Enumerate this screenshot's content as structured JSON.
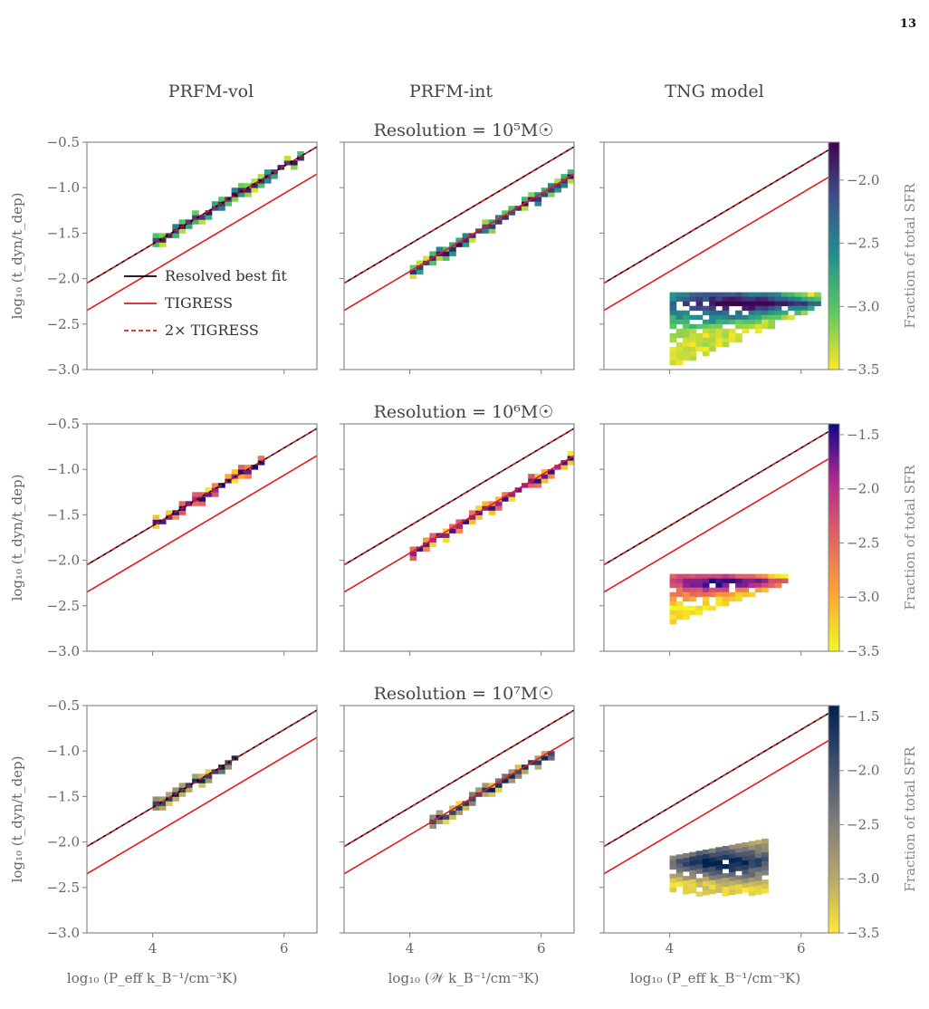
{
  "page_number": "13",
  "column_titles": [
    "PRFM-vol",
    "PRFM-int",
    "TNG model"
  ],
  "legend": {
    "entries": [
      {
        "label": "Resolved best fit",
        "color": "#000000",
        "style": "solid"
      },
      {
        "label": "TIGRESS",
        "color": "#e41a1c",
        "style": "solid"
      },
      {
        "label": "2× TIGRESS",
        "color": "#e41a1c",
        "style": "dashed"
      }
    ],
    "placement": "lower-right (top-left panel)"
  },
  "chart_data": {
    "type": "heatmap",
    "grid": [
      3,
      3
    ],
    "xlim": [
      3,
      6.5
    ],
    "ylim": [
      -3.0,
      -0.5
    ],
    "xticks": [
      "4",
      "6"
    ],
    "yticks": [
      "−0.5",
      "−1.0",
      "−1.5",
      "−2.0",
      "−2.5",
      "−3.0"
    ],
    "ylabel": "log₁₀ (t_dyn/t_dep)",
    "xlabels": [
      "log₁₀ (P_eff k_B⁻¹/cm⁻³K)",
      "log₁₀ (𝒲 k_B⁻¹/cm⁻³K)",
      "log₁₀ (P_eff k_B⁻¹/cm⁻³K)"
    ],
    "lines": {
      "resolved_best_fit": {
        "x": [
          3,
          6.5
        ],
        "y": [
          -2.05,
          -0.55
        ]
      },
      "tigress": {
        "x": [
          3,
          6.5
        ],
        "y": [
          -2.35,
          -0.85
        ]
      },
      "two_x_tigress": {
        "x": [
          3,
          6.5
        ],
        "y": [
          -2.05,
          -0.55
        ]
      }
    },
    "colorbar": {
      "label": "Fraction of total SFR",
      "ticks": [
        "−1.5",
        "−2.0",
        "−2.5",
        "−3.0",
        "−3.5"
      ],
      "ticks_top_row": [
        "−2.0",
        "−2.5",
        "−3.0",
        "−3.5"
      ]
    },
    "rows": [
      {
        "title": "Resolution = 10⁵M☉",
        "cmap": "viridis_r",
        "clim": [
          -3.5,
          -1.7
        ],
        "panels": [
          {
            "model": "PRFM-vol",
            "distribution": "diagonal",
            "x_range": [
              4.0,
              6.3
            ],
            "offset": 0.0,
            "half_width": 0.05
          },
          {
            "model": "PRFM-int",
            "distribution": "diagonal",
            "x_range": [
              4.0,
              6.5
            ],
            "offset": -0.32,
            "half_width": 0.05
          },
          {
            "model": "TNG model",
            "distribution": "blob",
            "x_range": [
              4.0,
              6.3
            ],
            "y_top": -2.15,
            "y_bottom": -2.95,
            "core_y": -2.25
          }
        ]
      },
      {
        "title": "Resolution = 10⁶M☉",
        "cmap": "plasma_r",
        "clim": [
          -3.5,
          -1.4
        ],
        "panels": [
          {
            "model": "PRFM-vol",
            "distribution": "diagonal",
            "x_range": [
              4.0,
              5.7
            ],
            "offset": 0.0,
            "half_width": 0.05
          },
          {
            "model": "PRFM-int",
            "distribution": "diagonal",
            "x_range": [
              4.0,
              6.5
            ],
            "offset": -0.32,
            "half_width": 0.05
          },
          {
            "model": "TNG model",
            "distribution": "blob",
            "x_range": [
              4.0,
              5.8
            ],
            "y_top": -2.15,
            "y_bottom": -2.65,
            "core_y": -2.22
          }
        ]
      },
      {
        "title": "Resolution = 10⁷M☉",
        "cmap": "cividis_r",
        "clim": [
          -3.5,
          -1.4
        ],
        "panels": [
          {
            "model": "PRFM-vol",
            "distribution": "diagonal",
            "x_range": [
              4.0,
              5.25
            ],
            "offset": 0.0,
            "half_width": 0.05
          },
          {
            "model": "PRFM-int",
            "distribution": "diagonal",
            "x_range": [
              4.3,
              6.2
            ],
            "offset": -0.32,
            "half_width": 0.05
          },
          {
            "model": "TNG model",
            "distribution": "band",
            "x_range": [
              4.0,
              5.5
            ],
            "y_top": -2.05,
            "y_bottom": -2.55,
            "core_y": -2.2
          }
        ]
      }
    ]
  }
}
